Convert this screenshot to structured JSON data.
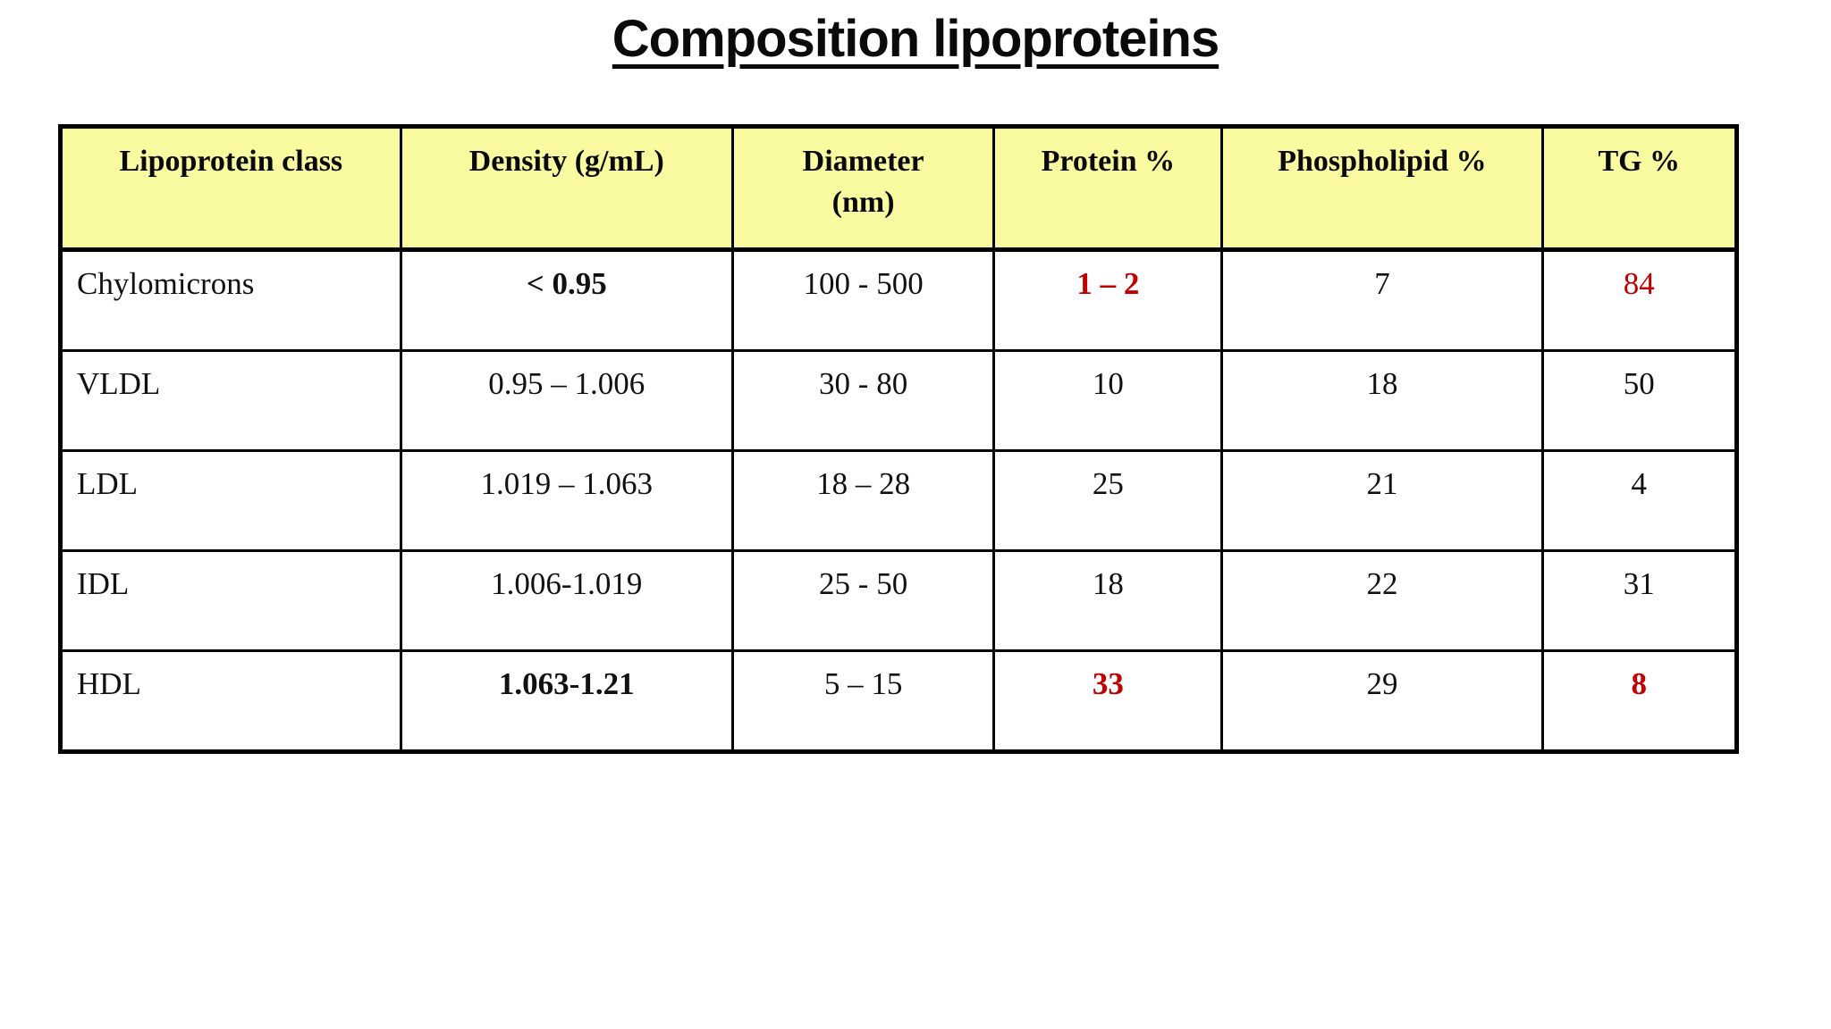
{
  "page": {
    "title": "Composition lipoproteins"
  },
  "colors": {
    "header_bg": "#FAFAA0",
    "highlight_red": "#C00000",
    "border": "#000000",
    "background": "#FFFFFF"
  },
  "table": {
    "columns": [
      {
        "label": "Lipoprotein class"
      },
      {
        "label": "Density (g/mL)"
      },
      {
        "label": "Diameter\n(nm)"
      },
      {
        "label": "Protein %"
      },
      {
        "label": "Phospholipid %"
      },
      {
        "label": "TG %"
      }
    ],
    "rows": [
      {
        "cells": [
          {
            "text": "Chylomicrons"
          },
          {
            "text": "< 0.95",
            "bold": true
          },
          {
            "text": "100 - 500"
          },
          {
            "text": "1 – 2",
            "bold": true,
            "red": true
          },
          {
            "text": "7"
          },
          {
            "text": "84",
            "red": true
          }
        ]
      },
      {
        "cells": [
          {
            "text": "VLDL"
          },
          {
            "text": "0.95 – 1.006"
          },
          {
            "text": "30 - 80"
          },
          {
            "text": "10"
          },
          {
            "text": "18"
          },
          {
            "text": "50"
          }
        ]
      },
      {
        "cells": [
          {
            "text": "LDL"
          },
          {
            "text": "1.019 – 1.063"
          },
          {
            "text": "18 – 28"
          },
          {
            "text": "25"
          },
          {
            "text": "21"
          },
          {
            "text": "4"
          }
        ]
      },
      {
        "cells": [
          {
            "text": "IDL"
          },
          {
            "text": "1.006-1.019"
          },
          {
            "text": "25 - 50"
          },
          {
            "text": "18"
          },
          {
            "text": "22"
          },
          {
            "text": "31"
          }
        ]
      },
      {
        "cells": [
          {
            "text": "HDL"
          },
          {
            "text": "1.063-1.21",
            "bold": true
          },
          {
            "text": "5 – 15"
          },
          {
            "text": "33",
            "bold": true,
            "red": true
          },
          {
            "text": "29"
          },
          {
            "text": "8",
            "bold": true,
            "red": true
          }
        ]
      }
    ]
  }
}
